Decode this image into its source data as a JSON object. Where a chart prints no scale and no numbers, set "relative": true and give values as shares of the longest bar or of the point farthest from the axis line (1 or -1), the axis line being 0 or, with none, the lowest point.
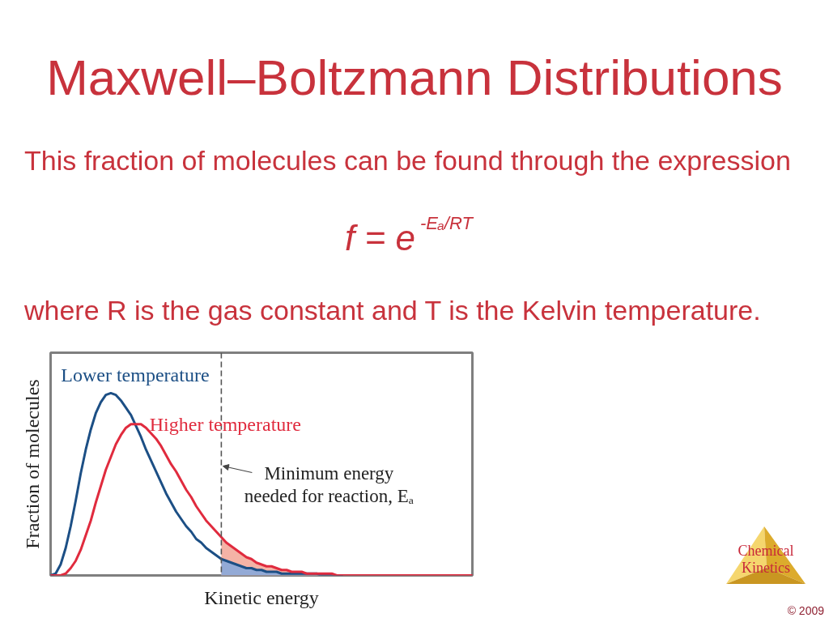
{
  "chart_data": {
    "type": "line",
    "title": "Maxwell–Boltzmann Distributions",
    "subtitle": "This fraction of molecules can be found through the expression",
    "xlabel": "Kinetic energy",
    "ylabel": "Fraction of molecules",
    "annotations": [
      "f = e$^{-Eₐ/RT}$",
      "where R is the gas constant and T is the Kelvin temperature.",
      "Chemical Kinetics",
      "© 2009",
      "Minimum energy needed for reaction, Eₐ"
    ],
    "categories": [
      null,
      null,
      null,
      null,
      null,
      null,
      null,
      null,
      null,
      null,
      null,
      null,
      null,
      null,
      null,
      null,
      null,
      null,
      null,
      null,
      null,
      null,
      null,
      null,
      null,
      null,
      null,
      null,
      null,
      null,
      null,
      null,
      null,
      null,
      null,
      null,
      null,
      null,
      null,
      null,
      null,
      null,
      null,
      null,
      null,
      null,
      null,
      null,
      null,
      null,
      null,
      null,
      null,
      null,
      null,
      null,
      null,
      null,
      null,
      null,
      null,
      null,
      null,
      null,
      null,
      null,
      null,
      null,
      null,
      null,
      null,
      null,
      null,
      null,
      null,
      null,
      null,
      null,
      null,
      null,
      null,
      null,
      null,
      null,
      null
    ],
    "relative": true,
    "series": [
      {
        "name": "Lower temperature",
        "color": "#1c4f85",
        "values": [
          0,
          0.01,
          0.06,
          0.15,
          0.27,
          0.41,
          0.56,
          0.69,
          0.8,
          0.89,
          0.95,
          0.99,
          1,
          0.99,
          0.96,
          0.92,
          0.88,
          0.82,
          0.76,
          0.69,
          0.63,
          0.57,
          0.51,
          0.45,
          0.4,
          0.35,
          0.31,
          0.27,
          0.24,
          0.2,
          0.18,
          0.15,
          0.13,
          0.11,
          0.09,
          0.08,
          0.07,
          0.06,
          0.05,
          0.04,
          0.04,
          0.03,
          0.03,
          0.02,
          0.02,
          0.02,
          0.01,
          0.01,
          0.01,
          0.01,
          0.01,
          0.01,
          0.01,
          0.01,
          0,
          0,
          0,
          0,
          0,
          null,
          null,
          null,
          null,
          null,
          null,
          null,
          null,
          null,
          null,
          null,
          null,
          null,
          null,
          null,
          null,
          null,
          null,
          null,
          null,
          null,
          null,
          null,
          null,
          null,
          null
        ]
      },
      {
        "name": "Higher temperature",
        "color": "#e02b3e",
        "values": [
          0,
          0,
          0,
          0.01,
          0.04,
          0.08,
          0.14,
          0.22,
          0.3,
          0.4,
          0.49,
          0.58,
          0.65,
          0.72,
          0.77,
          0.81,
          0.83,
          0.83,
          0.83,
          0.81,
          0.78,
          0.75,
          0.71,
          0.66,
          0.61,
          0.57,
          0.52,
          0.47,
          0.43,
          0.38,
          0.34,
          0.3,
          0.27,
          0.24,
          0.21,
          0.18,
          0.16,
          0.14,
          0.12,
          0.1,
          0.09,
          0.07,
          0.06,
          0.05,
          0.05,
          0.04,
          0.03,
          0.03,
          0.02,
          0.02,
          0.02,
          0.01,
          0.01,
          0.01,
          0.01,
          0.01,
          0.01,
          0,
          0,
          0,
          0,
          0,
          0,
          0,
          0,
          0,
          0,
          0,
          0,
          0,
          0,
          0,
          0,
          0,
          0,
          0,
          0,
          0,
          0,
          0,
          0,
          0,
          0,
          0,
          0
        ]
      },
      {
        "type": "area",
        "color": "#f4b3a6",
        "values": [
          null,
          null,
          null,
          null,
          null,
          null,
          null,
          null,
          null,
          null,
          null,
          null,
          null,
          null,
          null,
          null,
          null,
          null,
          null,
          null,
          null,
          null,
          null,
          null,
          null,
          null,
          null,
          null,
          null,
          null,
          null,
          null,
          null,
          null,
          0.21,
          0.18,
          0.16,
          0.14,
          0.12,
          0.1,
          0.09,
          0.07,
          0.06,
          0.05,
          0.05,
          0.04,
          0.03,
          0.03,
          0.02,
          0.02,
          0.02,
          0.01,
          0.01,
          0.01,
          0.01,
          0.01,
          0.01,
          0,
          0,
          null,
          null,
          null,
          null,
          null,
          null,
          null,
          null,
          null,
          null,
          null,
          null,
          null,
          null,
          null,
          null,
          null,
          null,
          null,
          null,
          null,
          null,
          null,
          null,
          null,
          null
        ]
      },
      {
        "type": "area",
        "color": "#93aad6",
        "values": [
          null,
          null,
          null,
          null,
          null,
          null,
          null,
          null,
          null,
          null,
          null,
          null,
          null,
          null,
          null,
          null,
          null,
          null,
          null,
          null,
          null,
          null,
          null,
          null,
          null,
          null,
          null,
          null,
          null,
          null,
          null,
          null,
          null,
          null,
          0.09,
          0.08,
          0.07,
          0.06,
          0.05,
          0.04,
          0.04,
          0.03,
          0.03,
          0.02,
          0.02,
          0.02,
          0.01,
          0.01,
          0.01,
          0.01,
          0.01,
          0.01,
          0.01,
          0.01,
          0,
          0,
          0,
          0,
          0,
          null,
          null,
          null,
          null,
          null,
          null,
          null,
          null,
          null,
          null,
          null,
          null,
          null,
          null,
          null,
          null,
          null,
          null,
          null,
          null,
          null,
          null,
          null,
          null,
          null,
          null
        ]
      }
    ]
  }
}
